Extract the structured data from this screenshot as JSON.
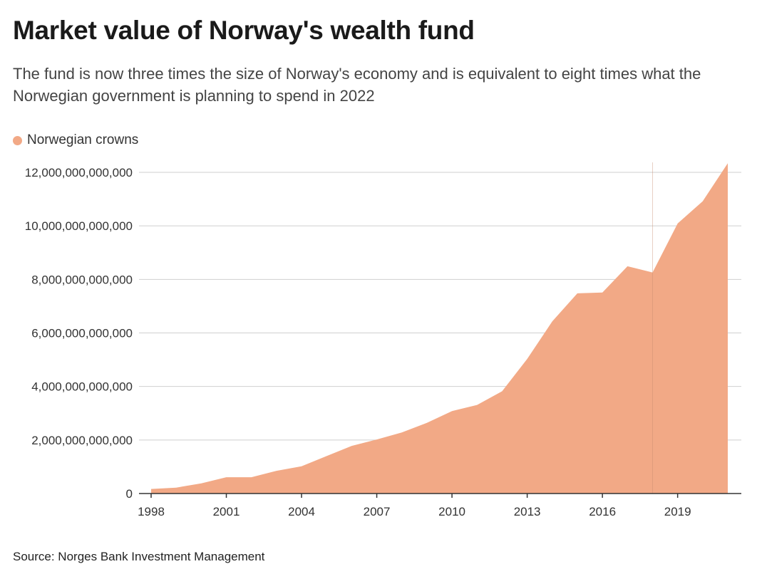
{
  "title": "Market value of Norway's wealth fund",
  "subtitle": "The fund is now three times the size of Norway's economy and is equivalent to eight times what the Norwegian government is planning to spend in 2022",
  "source": "Source: Norges Bank Investment Management",
  "colors": {
    "area": "#f2a986",
    "grid": "#cfcfcf",
    "axis": "#333333"
  },
  "chart_data": {
    "type": "area",
    "legend": [
      "Norwegian crowns"
    ],
    "legend_position": "top-left",
    "grid": true,
    "x": [
      1998,
      1999,
      2000,
      2001,
      2002,
      2003,
      2004,
      2005,
      2006,
      2007,
      2008,
      2009,
      2010,
      2011,
      2012,
      2013,
      2014,
      2015,
      2016,
      2017,
      2018,
      2019,
      2020,
      2021
    ],
    "series": [
      {
        "name": "Norwegian crowns",
        "values": [
          170000000000,
          220000000000,
          380000000000,
          610000000000,
          610000000000,
          850000000000,
          1020000000000,
          1400000000000,
          1780000000000,
          2020000000000,
          2280000000000,
          2640000000000,
          3080000000000,
          3310000000000,
          3820000000000,
          5030000000000,
          6430000000000,
          7480000000000,
          7510000000000,
          8490000000000,
          8260000000000,
          10090000000000,
          10920000000000,
          12340000000000
        ]
      }
    ],
    "xlim": [
      1998,
      2021
    ],
    "ylim": [
      0,
      12000000000000
    ],
    "x_ticks": [
      "1998",
      "2001",
      "2004",
      "2007",
      "2010",
      "2013",
      "2016",
      "2019"
    ],
    "y_ticks": [
      "0",
      "2,000,000,000,000",
      "4,000,000,000,000",
      "6,000,000,000,000",
      "8,000,000,000,000",
      "10,000,000,000,000",
      "12,000,000,000,000"
    ],
    "y_tick_values": [
      0,
      2000000000000,
      4000000000000,
      6000000000000,
      8000000000000,
      10000000000000,
      12000000000000
    ],
    "x_tick_values": [
      1998,
      2001,
      2004,
      2007,
      2010,
      2013,
      2016,
      2019
    ],
    "xlabel": "",
    "ylabel": ""
  }
}
